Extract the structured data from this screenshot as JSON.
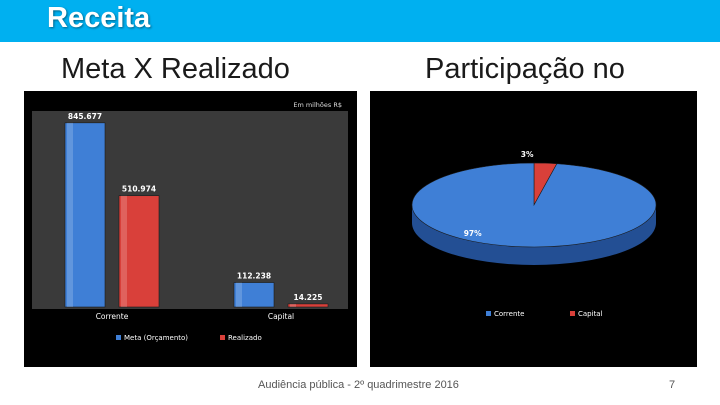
{
  "header": {
    "title": "Receita"
  },
  "subtitles": {
    "left": "Meta X Realizado",
    "right": "Participação no"
  },
  "footer": {
    "text": "Audiência pública - 2º quadrimestre 2016",
    "page": "7"
  },
  "colors": {
    "header": "#00b0f0",
    "meta": "#3f7fd6",
    "realizado": "#d9403a",
    "plot_bg": "#3a3a3a",
    "panel_bg": "#000000"
  },
  "chart_data": [
    {
      "type": "bar",
      "note": "Em milhões R$",
      "categories": [
        "Corrente",
        "Capital"
      ],
      "series": [
        {
          "name": "Meta (Orçamento)",
          "values": [
            845.677,
            112.238
          ],
          "labels": [
            "845.677",
            "112.238"
          ]
        },
        {
          "name": "Realizado",
          "values": [
            510.974,
            14.225
          ],
          "labels": [
            "510.974",
            "14.225"
          ]
        }
      ],
      "ylim": [
        0,
        900
      ],
      "legend": "bottom",
      "grid": false
    },
    {
      "type": "pie",
      "slices": [
        {
          "name": "Corrente",
          "value": 97,
          "label": "97%"
        },
        {
          "name": "Capital",
          "value": 3,
          "label": "3%"
        }
      ],
      "legend": "bottom"
    }
  ]
}
